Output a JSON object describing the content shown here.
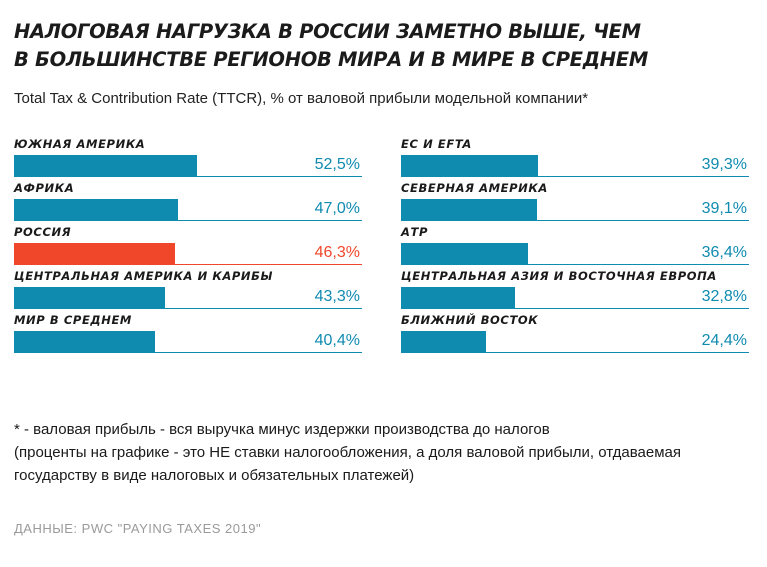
{
  "title_lines": [
    "НАЛОГОВАЯ НАГРУЗКА В РОССИИ ЗАМЕТНО ВЫШЕ, ЧЕМ",
    "В БОЛЬШИНСТВЕ РЕГИОНОВ МИРА И В МИРЕ В СРЕДНЕМ"
  ],
  "subtitle": "Total Tax & Contribution Rate (TTCR), % от валовой прибыли модельной компании*",
  "footnote_lines": [
    "* - валовая прибыль - вся выручка минус издержки производства до налогов",
    "(проценты на графике - это НЕ ставки налогообложения, а доля валовой прибыли, отдаваемая",
    "государству в виде налоговых и обязательных платежей)"
  ],
  "source": "ДАННЫЕ: PWC \"PAYING TAXES 2019\"",
  "colors": {
    "bar": "#0f8bb0",
    "highlight": "#f0472b"
  },
  "chart_data": {
    "type": "bar",
    "orientation": "horizontal",
    "xlim": [
      0,
      100
    ],
    "panels": [
      {
        "categories": [
          "ЮЖНАЯ АМЕРИКА",
          "АФРИКА",
          "РОССИЯ",
          "ЦЕНТРАЛЬНАЯ АМЕРИКА И КАРИБЫ",
          "МИР В СРЕДНЕМ"
        ],
        "values": [
          52.5,
          47.0,
          46.3,
          43.3,
          40.4
        ],
        "value_labels": [
          "52,5%",
          "47,0%",
          "46,3%",
          "43,3%",
          "40,4%"
        ],
        "highlight": [
          false,
          false,
          true,
          false,
          false
        ]
      },
      {
        "categories": [
          "ЕС И EFTA",
          "СЕВЕРНАЯ АМЕРИКА",
          "АТР",
          "ЦЕНТРАЛЬНАЯ АЗИЯ И ВОСТОЧНАЯ ЕВРОПА",
          "БЛИЖНИЙ ВОСТОК"
        ],
        "values": [
          39.3,
          39.1,
          36.4,
          32.8,
          24.4
        ],
        "value_labels": [
          "39,3%",
          "39,1%",
          "36,4%",
          "32,8%",
          "24,4%"
        ],
        "highlight": [
          false,
          false,
          false,
          false,
          false
        ]
      }
    ]
  }
}
